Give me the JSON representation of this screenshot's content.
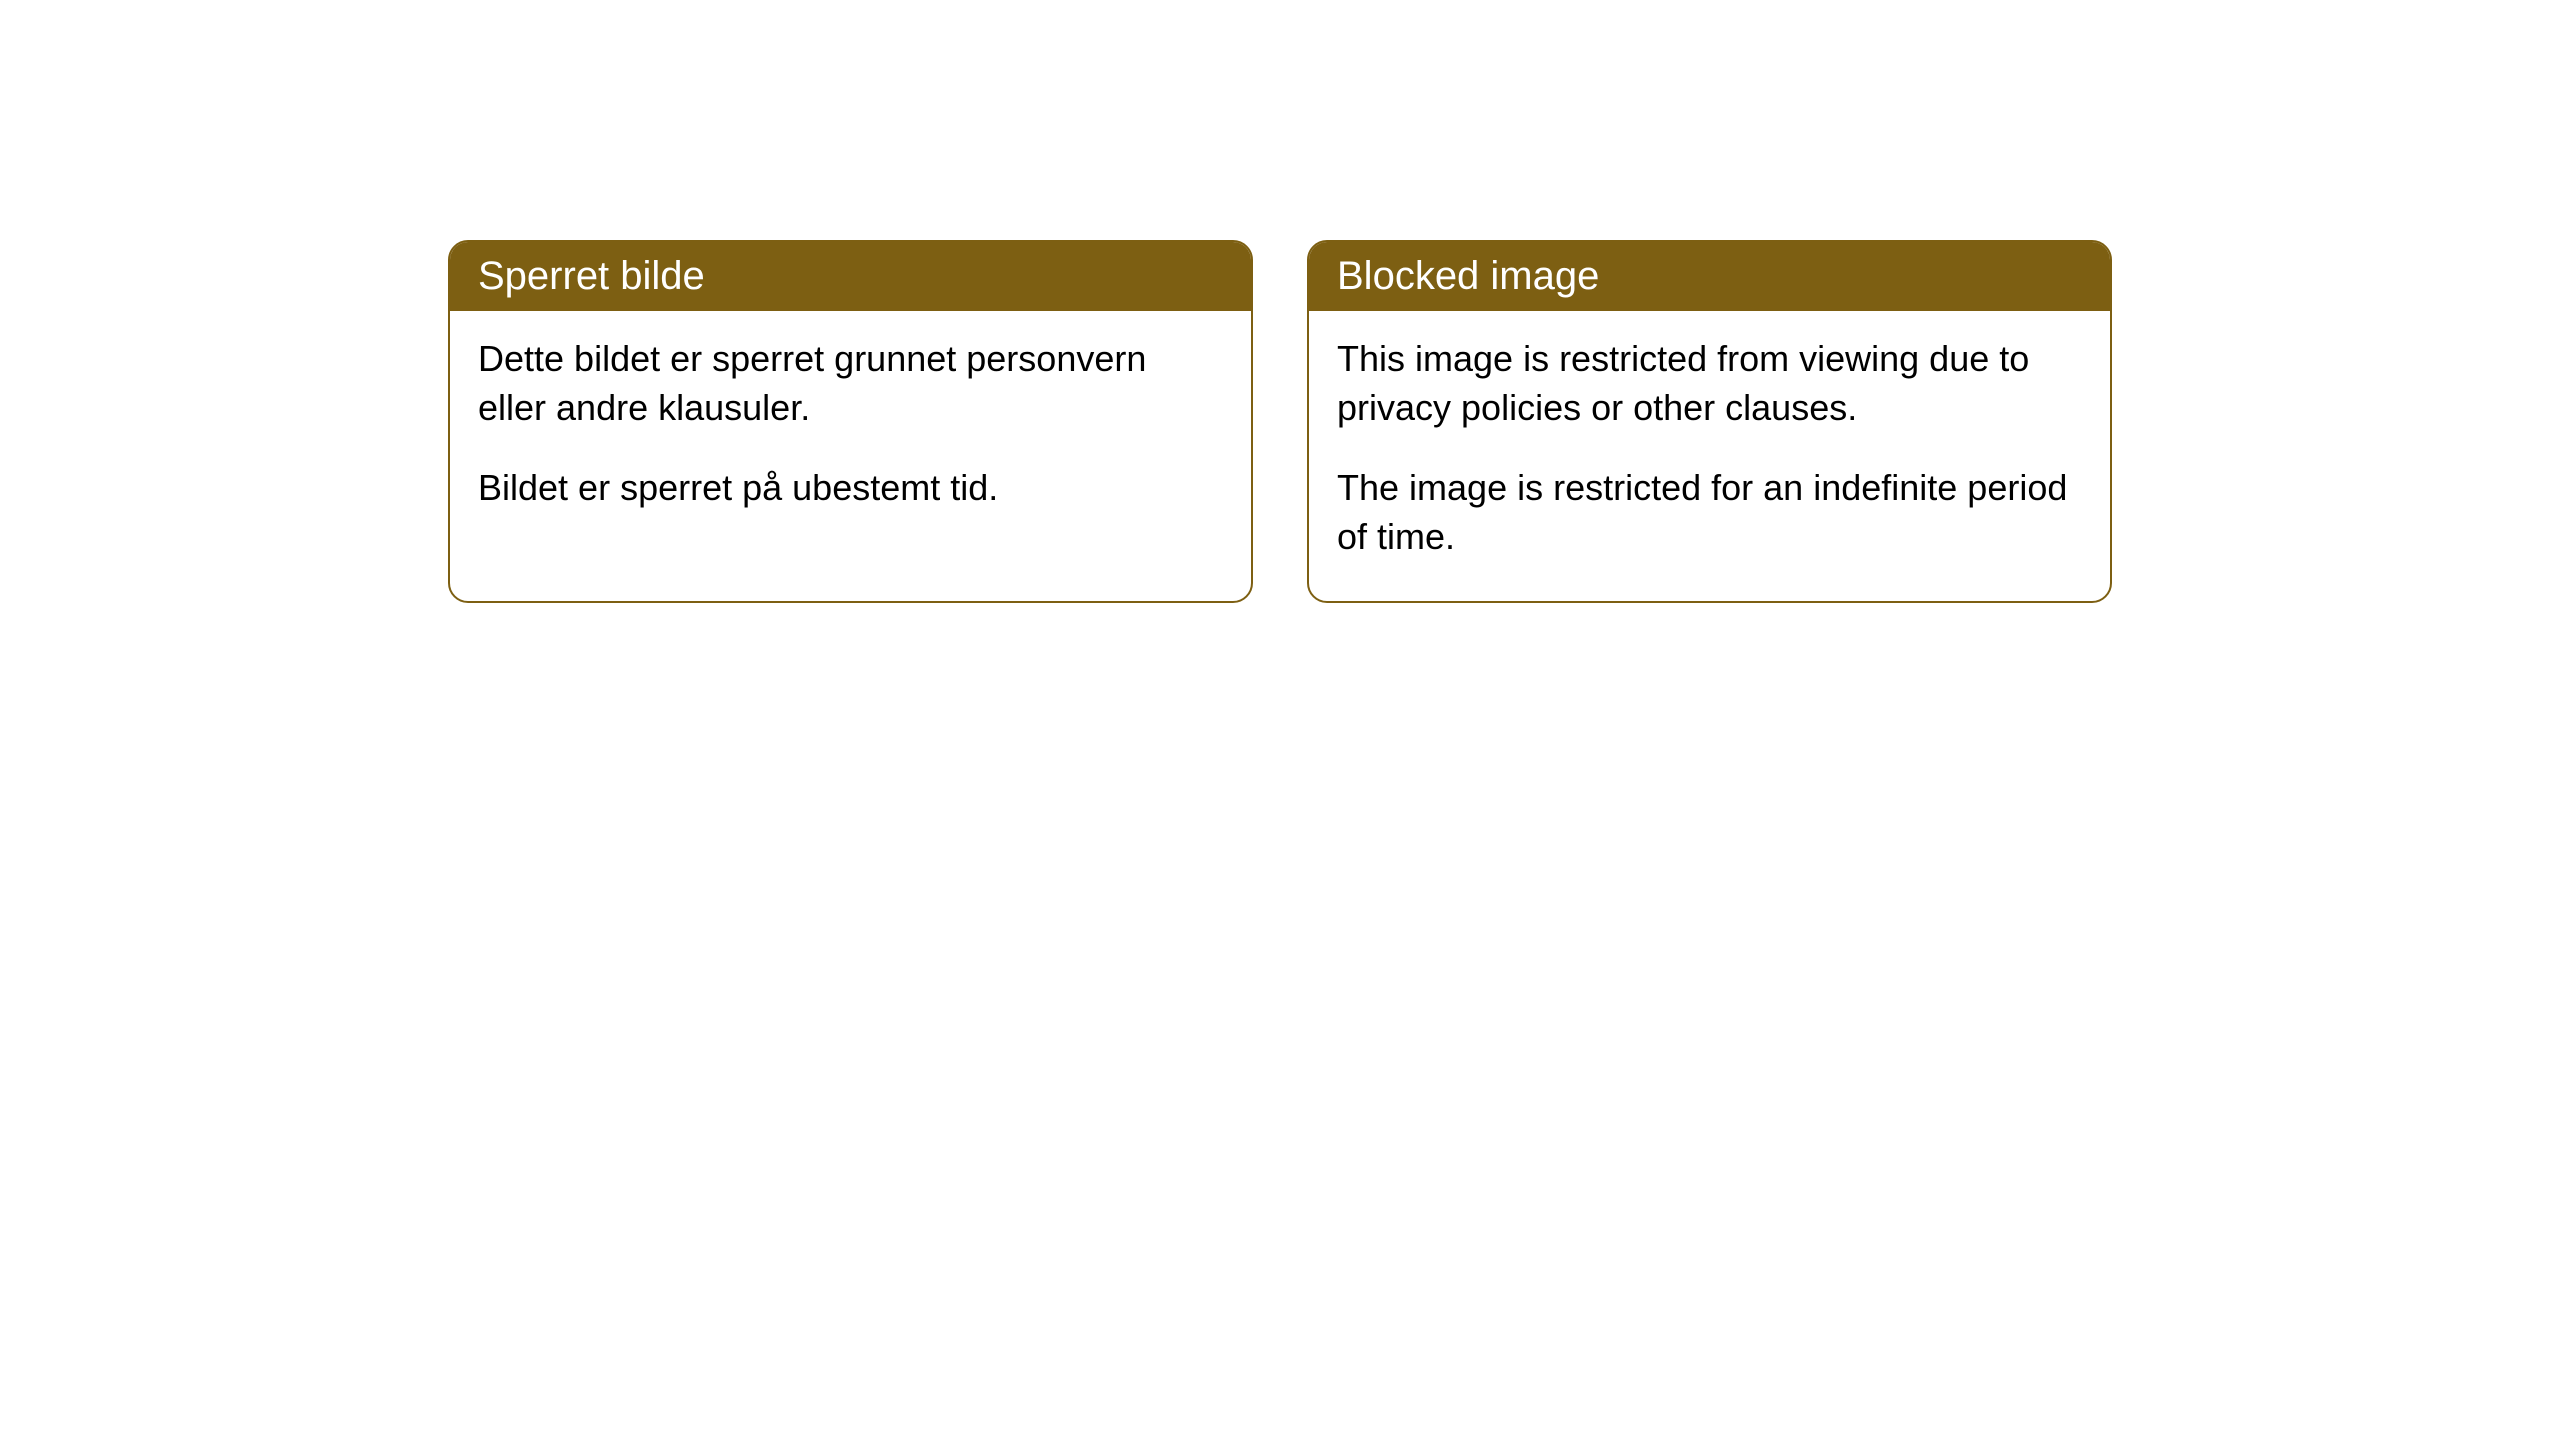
{
  "cards": [
    {
      "title": "Sperret bilde",
      "paragraph1": "Dette bildet er sperret grunnet personvern eller andre klausuler.",
      "paragraph2": "Bildet er sperret på ubestemt tid."
    },
    {
      "title": "Blocked image",
      "paragraph1": "This image is restricted from viewing due to privacy policies or other clauses.",
      "paragraph2": "The image is restricted for an indefinite period of time."
    }
  ],
  "styling": {
    "header_background_color": "#7d5f12",
    "header_text_color": "#ffffff",
    "border_color": "#7d5f12",
    "body_background_color": "#ffffff",
    "body_text_color": "#000000",
    "border_radius": 20,
    "header_fontsize": 40,
    "body_fontsize": 36
  }
}
